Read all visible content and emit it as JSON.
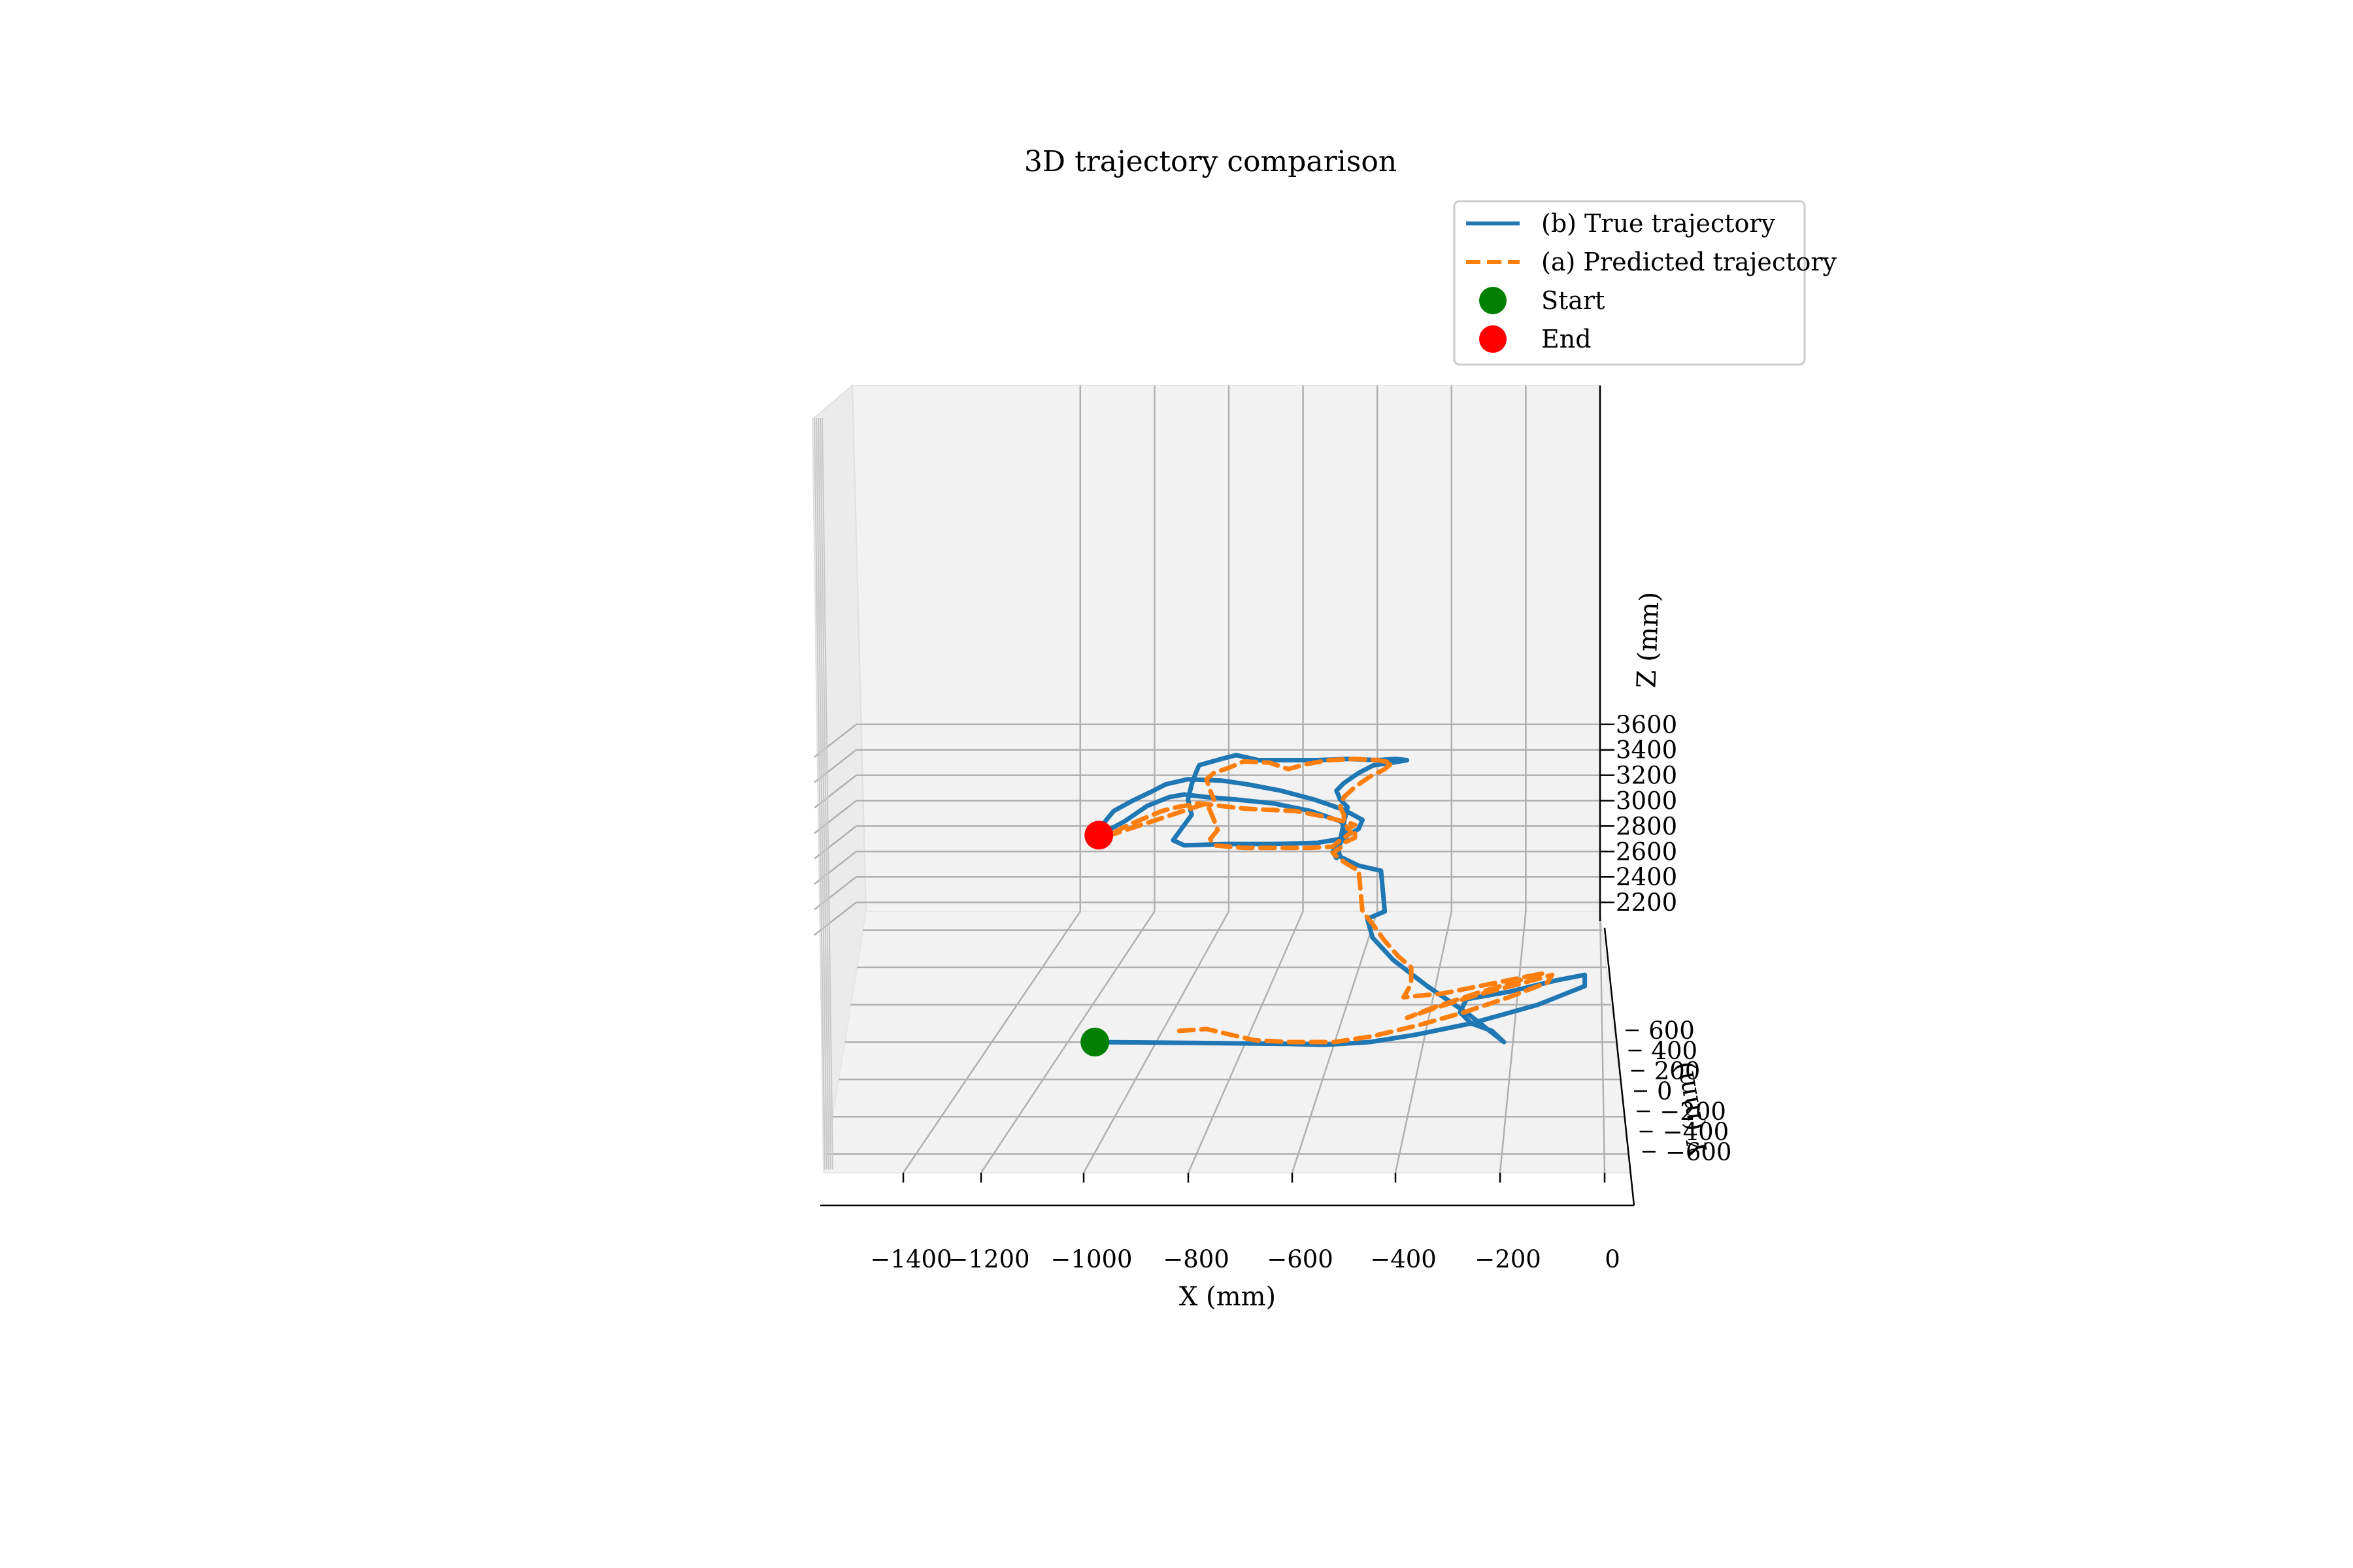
{
  "chart_data": {
    "type": "line",
    "projection": "3d",
    "title": "3D trajectory comparison",
    "xlabel": "X (mm)",
    "ylabel": "Y (mm)",
    "zlabel": "Z (mm)",
    "xlim": [
      -1500,
      50
    ],
    "ylim": [
      -700,
      700
    ],
    "zlim": [
      2000,
      3700
    ],
    "x_ticks": [
      "−1400",
      "−1200",
      "−1000",
      "−800",
      "−600",
      "−400",
      "−200",
      "0"
    ],
    "y_ticks": [
      "−600",
      "−400",
      "−200",
      "0",
      "200",
      "400",
      "600"
    ],
    "z_ticks": [
      "2200",
      "2400",
      "2600",
      "2800",
      "3000",
      "3200",
      "3400",
      "3600"
    ],
    "grid": true,
    "legend_position": "top-right",
    "series": [
      {
        "name": "(b) True trajectory",
        "style": "solid",
        "color": "#1f77b4",
        "points": [
          [
            -1135,
            0,
            2000
          ],
          [
            -900,
            -5,
            2000
          ],
          [
            -700,
            -10,
            2000
          ],
          [
            -620,
            -15,
            2000
          ],
          [
            -520,
            0,
            2000
          ],
          [
            -420,
            40,
            2000
          ],
          [
            -300,
            100,
            2000
          ],
          [
            -150,
            200,
            2000
          ],
          [
            -40,
            300,
            2000
          ],
          [
            -40,
            360,
            2000
          ],
          [
            -110,
            330,
            2000
          ],
          [
            -220,
            270,
            2000
          ],
          [
            -320,
            230,
            2000
          ],
          [
            -330,
            160,
            2000
          ],
          [
            -300,
            100,
            2000
          ],
          [
            -250,
            60,
            2000
          ],
          [
            -220,
            0,
            2000
          ],
          [
            -220,
            0,
            2000
          ],
          [
            -310,
            150,
            2000
          ],
          [
            -420,
            300,
            2000
          ],
          [
            -520,
            440,
            2000
          ],
          [
            -590,
            560,
            2000
          ],
          [
            -620,
            660,
            2000
          ],
          [
            -580,
            700,
            2000
          ],
          [
            -590,
            700,
            2320
          ],
          [
            -650,
            700,
            2360
          ],
          [
            -700,
            700,
            2430
          ],
          [
            -705,
            700,
            2480
          ],
          [
            -700,
            700,
            2540
          ],
          [
            -680,
            700,
            2600
          ],
          [
            -650,
            700,
            2650
          ],
          [
            -640,
            700,
            2720
          ],
          [
            -690,
            700,
            2800
          ],
          [
            -770,
            700,
            2880
          ],
          [
            -860,
            700,
            2950
          ],
          [
            -950,
            700,
            3000
          ],
          [
            -1020,
            700,
            3030
          ],
          [
            -1110,
            700,
            3040
          ],
          [
            -1170,
            700,
            3000
          ],
          [
            -1210,
            700,
            2940
          ],
          [
            -1260,
            700,
            2870
          ],
          [
            -1310,
            700,
            2790
          ],
          [
            -1330,
            700,
            2720
          ],
          [
            -1350,
            700,
            2630
          ],
          [
            -1350,
            700,
            2600
          ],
          [
            -1350,
            700,
            2600
          ],
          [
            -1280,
            700,
            2710
          ],
          [
            -1220,
            700,
            2830
          ],
          [
            -1160,
            700,
            2900
          ],
          [
            -1120,
            700,
            2920
          ],
          [
            -1060,
            700,
            2900
          ],
          [
            -980,
            700,
            2880
          ],
          [
            -880,
            700,
            2850
          ],
          [
            -780,
            700,
            2790
          ],
          [
            -700,
            700,
            2710
          ],
          [
            -680,
            700,
            2650
          ],
          [
            -700,
            700,
            2570
          ],
          [
            -760,
            700,
            2540
          ],
          [
            -880,
            700,
            2530
          ],
          [
            -1000,
            700,
            2530
          ],
          [
            -1120,
            700,
            2520
          ],
          [
            -1150,
            700,
            2560
          ],
          [
            -1120,
            700,
            2680
          ],
          [
            -1100,
            700,
            2760
          ],
          [
            -1110,
            700,
            2880
          ],
          [
            -1100,
            700,
            3000
          ],
          [
            -1090,
            700,
            3080
          ],
          [
            -1080,
            700,
            3150
          ],
          [
            -1020,
            700,
            3200
          ],
          [
            -980,
            700,
            3230
          ],
          [
            -920,
            700,
            3190
          ],
          [
            -840,
            700,
            3190
          ],
          [
            -760,
            700,
            3190
          ],
          [
            -680,
            700,
            3200
          ],
          [
            -600,
            700,
            3190
          ],
          [
            -550,
            700,
            3200
          ],
          [
            -520,
            700,
            3190
          ],
          [
            -560,
            700,
            3170
          ],
          [
            -610,
            700,
            3150
          ],
          [
            -650,
            700,
            3090
          ],
          [
            -690,
            700,
            3010
          ],
          [
            -710,
            700,
            2950
          ],
          [
            -700,
            700,
            2880
          ],
          [
            -680,
            700,
            2820
          ],
          [
            -690,
            700,
            2700
          ],
          [
            -700,
            700,
            2560
          ],
          [
            -720,
            700,
            2470
          ],
          [
            -710,
            700,
            2420
          ]
        ]
      },
      {
        "name": "(a) Predicted trajectory",
        "style": "dashed",
        "color": "#ff7f0e",
        "points": [
          [
            -960,
            60,
            2000
          ],
          [
            -900,
            70,
            2000
          ],
          [
            -840,
            40,
            2000
          ],
          [
            -780,
            10,
            2000
          ],
          [
            -700,
            0,
            2000
          ],
          [
            -600,
            0,
            2000
          ],
          [
            -520,
            30,
            2000
          ],
          [
            -420,
            90,
            2000
          ],
          [
            -320,
            160,
            2000
          ],
          [
            -220,
            240,
            2000
          ],
          [
            -130,
            320,
            2000
          ],
          [
            -120,
            360,
            2000
          ],
          [
            -200,
            310,
            2000
          ],
          [
            -300,
            250,
            2000
          ],
          [
            -380,
            190,
            2000
          ],
          [
            -450,
            130,
            2000
          ],
          [
            -400,
            180,
            2000
          ],
          [
            -300,
            260,
            2000
          ],
          [
            -200,
            330,
            2000
          ],
          [
            -140,
            370,
            2000
          ],
          [
            -250,
            320,
            2000
          ],
          [
            -380,
            260,
            2000
          ],
          [
            -470,
            240,
            2000
          ],
          [
            -460,
            310,
            2000
          ],
          [
            -470,
            400,
            2000
          ],
          [
            -510,
            460,
            2000
          ],
          [
            -560,
            550,
            2000
          ],
          [
            -600,
            630,
            2000
          ],
          [
            -640,
            700,
            2000
          ],
          [
            -650,
            700,
            2320
          ],
          [
            -680,
            700,
            2370
          ],
          [
            -700,
            700,
            2410
          ],
          [
            -720,
            700,
            2460
          ],
          [
            -700,
            700,
            2500
          ],
          [
            -690,
            700,
            2540
          ],
          [
            -660,
            700,
            2580
          ],
          [
            -660,
            700,
            2620
          ],
          [
            -680,
            700,
            2650
          ],
          [
            -660,
            700,
            2680
          ],
          [
            -680,
            700,
            2700
          ],
          [
            -750,
            700,
            2750
          ],
          [
            -820,
            700,
            2790
          ],
          [
            -900,
            700,
            2800
          ],
          [
            -960,
            700,
            2810
          ],
          [
            -1020,
            700,
            2830
          ],
          [
            -1080,
            700,
            2850
          ],
          [
            -1140,
            700,
            2820
          ],
          [
            -1180,
            700,
            2790
          ],
          [
            -1230,
            700,
            2730
          ],
          [
            -1270,
            700,
            2680
          ],
          [
            -1310,
            700,
            2620
          ],
          [
            -1330,
            700,
            2590
          ],
          [
            -1060,
            700,
            2850
          ],
          [
            -1050,
            700,
            2790
          ],
          [
            -1040,
            700,
            2720
          ],
          [
            -1030,
            700,
            2640
          ],
          [
            -1050,
            700,
            2570
          ],
          [
            -1040,
            700,
            2520
          ],
          [
            -960,
            700,
            2500
          ],
          [
            -860,
            700,
            2500
          ],
          [
            -780,
            700,
            2500
          ],
          [
            -720,
            700,
            2510
          ],
          [
            -700,
            700,
            2560
          ],
          [
            -670,
            700,
            2620
          ],
          [
            -690,
            700,
            2700
          ],
          [
            -690,
            700,
            2760
          ],
          [
            -700,
            700,
            2820
          ],
          [
            -690,
            700,
            2900
          ],
          [
            -660,
            700,
            2980
          ],
          [
            -620,
            700,
            3060
          ],
          [
            -580,
            700,
            3120
          ],
          [
            -560,
            700,
            3170
          ],
          [
            -600,
            700,
            3190
          ],
          [
            -660,
            700,
            3200
          ],
          [
            -730,
            700,
            3190
          ],
          [
            -790,
            700,
            3160
          ],
          [
            -840,
            700,
            3120
          ],
          [
            -890,
            700,
            3170
          ],
          [
            -960,
            700,
            3180
          ],
          [
            -1000,
            700,
            3130
          ],
          [
            -1040,
            700,
            3090
          ],
          [
            -1060,
            700,
            3040
          ],
          [
            -1050,
            700,
            2950
          ],
          [
            -1040,
            700,
            2880
          ]
        ]
      }
    ],
    "markers": [
      {
        "name": "Start",
        "color": "#008000",
        "point": [
          -1135,
          0,
          2000
        ]
      },
      {
        "name": "End",
        "color": "#ff0000",
        "point": [
          -1350,
          700,
          2600
        ]
      }
    ]
  }
}
